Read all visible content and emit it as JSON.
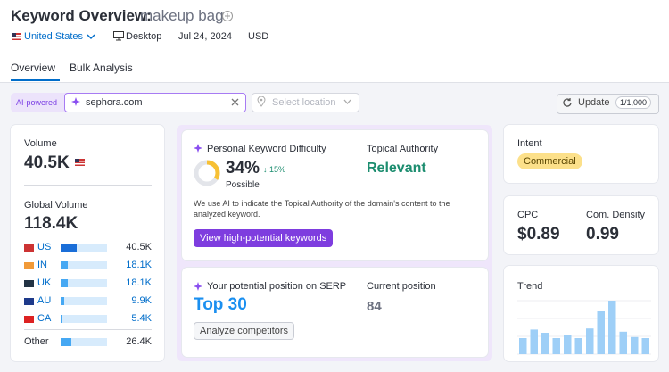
{
  "header": {
    "title": "Keyword Overview:",
    "keyword": "makeup bag",
    "country": "United States",
    "device": "Desktop",
    "date": "Jul 24, 2024",
    "currency": "USD"
  },
  "tabs": [
    "Overview",
    "Bulk Analysis"
  ],
  "filters": {
    "ai_label": "AI-powered",
    "domain": "sephora.com",
    "location_placeholder": "Select location",
    "update": "Update",
    "update_count": "1/1,000"
  },
  "volume": {
    "label": "Volume",
    "value": "40.5K",
    "global_label": "Global Volume",
    "global_value": "118.4K",
    "global_volume": 118400,
    "countries": [
      {
        "code": "US",
        "volume": 40500,
        "volume_label": "40.5K"
      },
      {
        "code": "IN",
        "volume": 18100,
        "volume_label": "18.1K"
      },
      {
        "code": "UK",
        "volume": 18100,
        "volume_label": "18.1K"
      },
      {
        "code": "AU",
        "volume": 9900,
        "volume_label": "9.9K"
      },
      {
        "code": "CA",
        "volume": 5400,
        "volume_label": "5.4K"
      }
    ],
    "other": {
      "label": "Other",
      "volume": 26400,
      "volume_label": "26.4K"
    }
  },
  "difficulty": {
    "label": "Personal Keyword Difficulty",
    "value": 34,
    "value_label": "34%",
    "change": "15%",
    "level": "Possible",
    "authority_label": "Topical Authority",
    "authority": "Relevant",
    "description": "We use AI to indicate the Topical Authority of the domain's content to the analyzed keyword.",
    "button": "View high-potential keywords"
  },
  "serp": {
    "label": "Your potential position on SERP",
    "value": "Top 30",
    "current_label": "Current position",
    "current": "84",
    "button": "Analyze competitors"
  },
  "intent": {
    "label": "Intent",
    "value": "Commercial"
  },
  "cpc": {
    "label": "CPC",
    "value": "$0.89",
    "density_label": "Com. Density",
    "density": "0.99"
  },
  "trend": {
    "label": "Trend",
    "ylim": [
      0,
      100
    ],
    "values": [
      30,
      46,
      40,
      30,
      36,
      30,
      48,
      80,
      100,
      42,
      32,
      30
    ]
  }
}
